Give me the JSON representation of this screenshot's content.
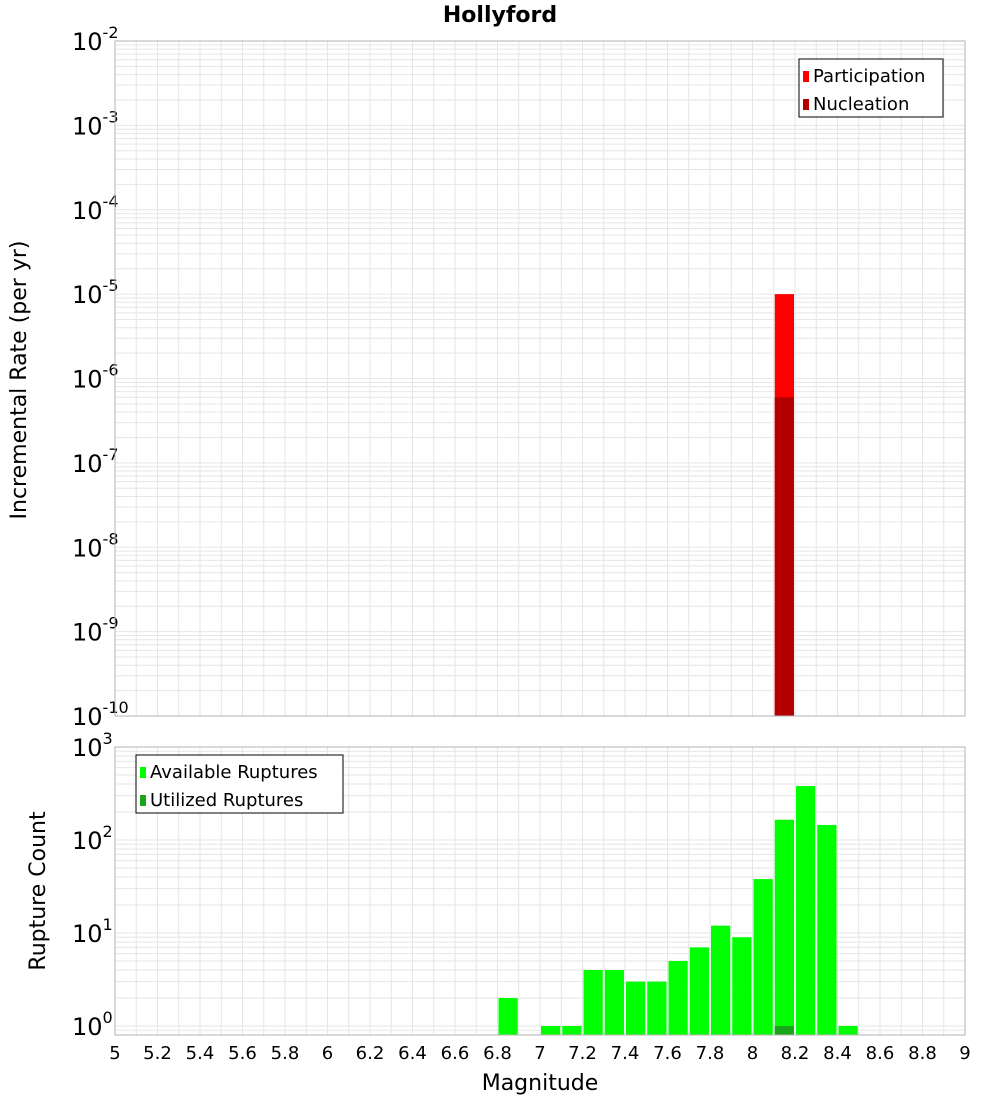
{
  "title": "Hollyford",
  "xlabel": "Magnitude",
  "x_ticks": [
    "5",
    "5.2",
    "5.4",
    "5.6",
    "5.8",
    "6",
    "6.2",
    "6.4",
    "6.6",
    "6.8",
    "7",
    "7.2",
    "7.4",
    "7.6",
    "7.8",
    "8",
    "8.2",
    "8.4",
    "8.6",
    "8.8",
    "9"
  ],
  "colors": {
    "participation": "#ff0000",
    "nucleation": "#b40000",
    "available": "#00ff00",
    "utilized": "#1aa61a",
    "grid": "#e6e6e6",
    "frame": "#b3b3b3"
  },
  "chart_data": [
    {
      "type": "bar",
      "title": "Hollyford",
      "xlabel": "Magnitude",
      "ylabel": "Incremental Rate (per yr)",
      "xlim": [
        5,
        9
      ],
      "yscale": "log",
      "ylim": [
        1e-10,
        0.01
      ],
      "y_ticks": [
        {
          "base": "10",
          "exp": "-10"
        },
        {
          "base": "10",
          "exp": "-9"
        },
        {
          "base": "10",
          "exp": "-8"
        },
        {
          "base": "10",
          "exp": "-7"
        },
        {
          "base": "10",
          "exp": "-6"
        },
        {
          "base": "10",
          "exp": "-5"
        },
        {
          "base": "10",
          "exp": "-4"
        },
        {
          "base": "10",
          "exp": "-3"
        },
        {
          "base": "10",
          "exp": "-2"
        }
      ],
      "legend_position": "top-right",
      "series": [
        {
          "name": "Participation",
          "color": "#ff0000",
          "x": [
            8.15
          ],
          "values": [
            1e-05
          ]
        },
        {
          "name": "Nucleation",
          "color": "#b40000",
          "x": [
            8.15
          ],
          "values": [
            6e-07
          ]
        }
      ]
    },
    {
      "type": "bar",
      "ylabel": "Rupture Count",
      "xlabel": "Magnitude",
      "xlim": [
        5,
        9
      ],
      "yscale": "log",
      "ylim": [
        0.8,
        1000
      ],
      "y_ticks": [
        {
          "base": "10",
          "exp": "0"
        },
        {
          "base": "10",
          "exp": "1"
        },
        {
          "base": "10",
          "exp": "2"
        },
        {
          "base": "10",
          "exp": "3"
        }
      ],
      "legend_position": "top-left",
      "series": [
        {
          "name": "Available Ruptures",
          "color": "#00ff00",
          "x": [
            6.85,
            7.05,
            7.15,
            7.25,
            7.35,
            7.45,
            7.55,
            7.65,
            7.75,
            7.85,
            7.95,
            8.05,
            8.15,
            8.25,
            8.35,
            8.45
          ],
          "values": [
            2,
            1,
            1,
            4,
            4,
            3,
            3,
            5,
            7,
            12,
            9,
            38,
            165,
            380,
            145,
            1
          ]
        },
        {
          "name": "Utilized Ruptures",
          "color": "#1aa61a",
          "x": [
            8.15
          ],
          "values": [
            1
          ]
        }
      ]
    }
  ]
}
